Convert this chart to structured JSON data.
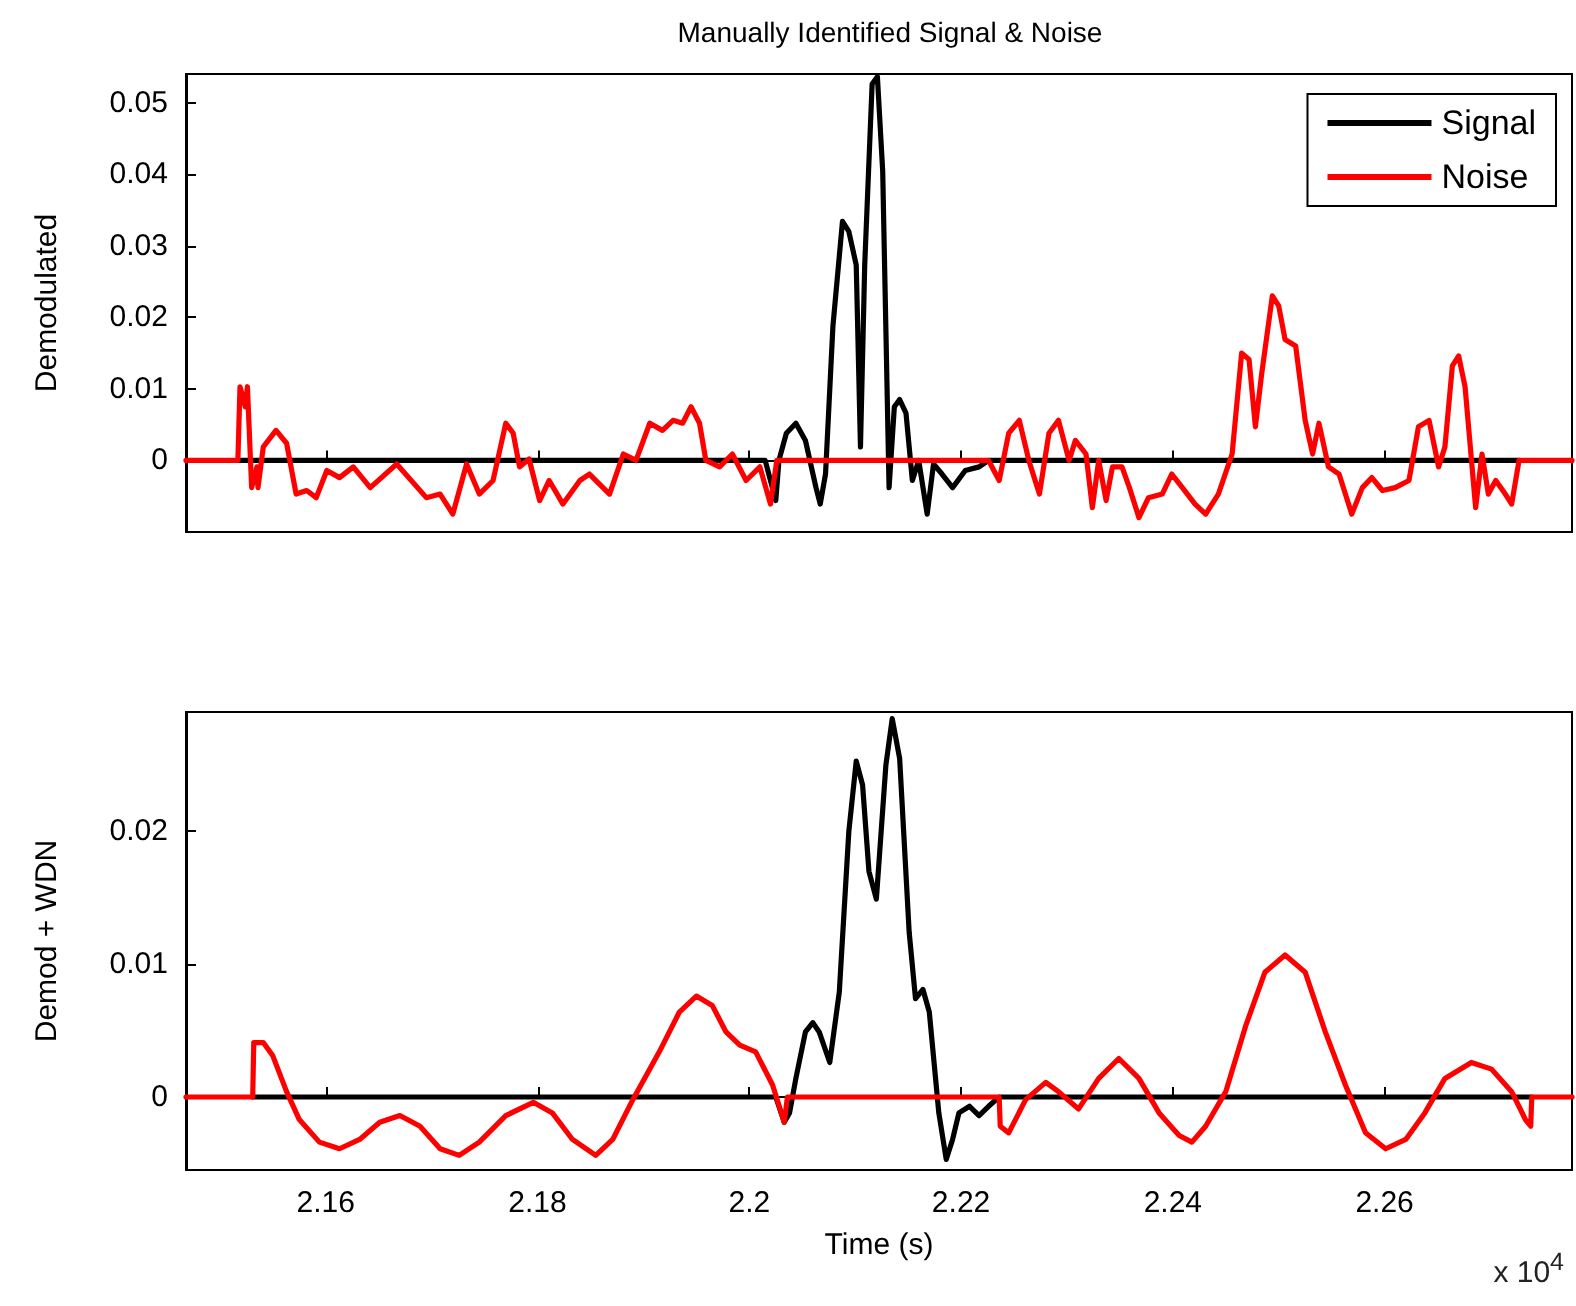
{
  "chart_data": [
    {
      "type": "line",
      "title": "Manually Identified Signal & Noise",
      "ylabel": "Demodulated",
      "legend": "top right",
      "marker": "none",
      "line_style": "solid",
      "tick_labels": "y",
      "xlim": [
        2.1468,
        2.2777
      ],
      "ylim": [
        -0.01,
        0.054
      ],
      "xticks": [
        2.16,
        2.18,
        2.2,
        2.22,
        2.24,
        2.26
      ],
      "yticks": [
        0,
        0.01,
        0.02,
        0.03,
        0.04,
        0.05
      ],
      "series": [
        {
          "name": "Signal",
          "color": "#000000",
          "x": [
            2.1519,
            2.2015,
            2.2025,
            2.2028,
            2.2035,
            2.2044,
            2.2053,
            2.2063,
            2.2067,
            2.2072,
            2.2079,
            2.2088,
            2.2094,
            2.2101,
            2.2105,
            2.2109,
            2.2116,
            2.2121,
            2.2126,
            2.2132,
            2.2137,
            2.2142,
            2.2148,
            2.2154,
            2.216,
            2.2168,
            2.2174,
            2.2182,
            2.2192,
            2.2204,
            2.2217,
            2.2226,
            2.2727
          ],
          "values": [
            0,
            0,
            -0.0056,
            0,
            0.0038,
            0.0052,
            0.0028,
            -0.0038,
            -0.0061,
            -0.0019,
            0.0188,
            0.0334,
            0.032,
            0.0273,
            0.0019,
            0.0273,
            0.0526,
            0.0536,
            0.0404,
            -0.0038,
            0.0075,
            0.0085,
            0.0066,
            -0.0028,
            0,
            -0.0075,
            -0.0005,
            -0.0019,
            -0.0038,
            -0.0014,
            -0.0009,
            0,
            0
          ]
        },
        {
          "name": "Noise",
          "color": "#ff0000",
          "x": [
            2.1468,
            2.1517,
            2.1519,
            2.1524,
            2.1526,
            2.153,
            2.1535,
            2.1536,
            2.1541,
            2.1553,
            2.1563,
            2.1572,
            2.1582,
            2.1591,
            2.1601,
            2.1613,
            2.1626,
            2.1642,
            2.1667,
            2.1695,
            2.1708,
            2.172,
            2.1733,
            2.1745,
            2.1758,
            2.177,
            2.1777,
            2.1783,
            2.1792,
            2.1802,
            2.1811,
            2.1824,
            2.184,
            2.1849,
            2.1868,
            2.1881,
            2.1893,
            2.1906,
            2.1918,
            2.1928,
            2.1937,
            2.1945,
            2.1953,
            2.1959,
            2.1972,
            2.1984,
            2.1997,
            2.201,
            2.202,
            2.2026,
            2.2226,
            2.2236,
            2.2245,
            2.2255,
            2.2264,
            2.2274,
            2.2283,
            2.2292,
            2.2302,
            2.2308,
            2.2318,
            2.2324,
            2.233,
            2.2337,
            2.2343,
            2.2352,
            2.2359,
            2.2368,
            2.2377,
            2.239,
            2.2399,
            2.2409,
            2.2421,
            2.2431,
            2.2443,
            2.2456,
            2.2465,
            2.2472,
            2.2478,
            2.2484,
            2.2494,
            2.25,
            2.2506,
            2.2516,
            2.2525,
            2.2532,
            2.2538,
            2.2547,
            2.2557,
            2.2569,
            2.2579,
            2.2588,
            2.2598,
            2.261,
            2.2623,
            2.2632,
            2.2642,
            2.2651,
            2.2657,
            2.2664,
            2.267,
            2.2676,
            2.2686,
            2.2692,
            2.2698,
            2.2705,
            2.2714,
            2.272,
            2.2727,
            2.2777
          ],
          "values": [
            0,
            0,
            0.0103,
            0.0075,
            0.0103,
            -0.0038,
            -0.0009,
            -0.0038,
            0.0019,
            0.0042,
            0.0024,
            -0.0047,
            -0.0042,
            -0.0052,
            -0.0014,
            -0.0024,
            -0.0009,
            -0.0038,
            -0.0005,
            -0.0052,
            -0.0047,
            -0.0075,
            -0.0005,
            -0.0047,
            -0.0028,
            0.0052,
            0.0038,
            -0.0009,
            0.0002,
            -0.0056,
            -0.0028,
            -0.0061,
            -0.0028,
            -0.0019,
            -0.0047,
            0.0009,
            0,
            0.0052,
            0.0042,
            0.0056,
            0.0052,
            0.0075,
            0.0052,
            0,
            -0.0009,
            0.0009,
            -0.0028,
            -0.0009,
            -0.0061,
            0,
            0,
            -0.0028,
            0.0038,
            0.0056,
            0,
            -0.0047,
            0.0038,
            0.0056,
            0,
            0.0028,
            0.0009,
            -0.0066,
            0,
            -0.0056,
            -0.0009,
            -0.0009,
            -0.0038,
            -0.008,
            -0.0052,
            -0.0047,
            -0.0019,
            -0.0038,
            -0.0061,
            -0.0075,
            -0.0047,
            0.0009,
            0.015,
            0.0141,
            0.0047,
            0.0122,
            0.023,
            0.0216,
            0.0169,
            0.016,
            0.0056,
            0.0009,
            0.0052,
            -0.0009,
            -0.0019,
            -0.0075,
            -0.0038,
            -0.0024,
            -0.0042,
            -0.0038,
            -0.0028,
            0.0047,
            0.0056,
            -0.0009,
            0.0019,
            0.0132,
            0.0146,
            0.0103,
            -0.0066,
            0.0009,
            -0.0047,
            -0.0028,
            -0.0047,
            -0.0061,
            0,
            0
          ]
        }
      ]
    },
    {
      "type": "line",
      "xlabel": "Time (s)",
      "ylabel": "Demod + WDN",
      "marker": "none",
      "line_style": "solid",
      "annotations": [
        "x 10$^{4}$"
      ],
      "xlim": [
        2.1468,
        2.2777
      ],
      "ylim": [
        -0.0055,
        0.029
      ],
      "xticks": [
        2.16,
        2.18,
        2.2,
        2.22,
        2.24,
        2.26
      ],
      "yticks": [
        0,
        0.01,
        0.02
      ],
      "series": [
        {
          "color": "#000000",
          "x": [
            2.1531,
            2.2025,
            2.2033,
            2.2038,
            2.2044,
            2.2053,
            2.206,
            2.2066,
            2.2076,
            2.2085,
            2.2094,
            2.2101,
            2.2107,
            2.2113,
            2.212,
            2.2129,
            2.2135,
            2.2142,
            2.2151,
            2.2157,
            2.2164,
            2.217,
            2.2179,
            2.2186,
            2.2192,
            2.2198,
            2.2208,
            2.2217,
            2.2226,
            2.2236,
            2.2739
          ],
          "values": [
            0,
            0,
            -0.0019,
            -0.0012,
            0.0014,
            0.0049,
            0.0056,
            0.0049,
            0.0026,
            0.0079,
            0.02,
            0.0253,
            0.0235,
            0.017,
            0.0149,
            0.025,
            0.0285,
            0.0255,
            0.0124,
            0.0074,
            0.0081,
            0.0064,
            -0.0012,
            -0.0047,
            -0.0032,
            -0.0012,
            -0.0007,
            -0.0014,
            -0.0007,
            0,
            0
          ]
        },
        {
          "color": "#ff0000",
          "x": [
            2.1468,
            2.1531,
            2.1532,
            2.1541,
            2.155,
            2.1563,
            2.1575,
            2.1594,
            2.1613,
            2.1632,
            2.1651,
            2.167,
            2.1689,
            2.1708,
            2.1726,
            2.1745,
            2.177,
            2.1796,
            2.1814,
            2.1833,
            2.1855,
            2.1871,
            2.189,
            2.1915,
            2.1934,
            2.195,
            2.1965,
            2.1978,
            2.1991,
            2.2006,
            2.2022,
            2.2033,
            2.2036,
            2.2236,
            2.2237,
            2.2245,
            2.2261,
            2.228,
            2.2292,
            2.2311,
            2.233,
            2.2349,
            2.2368,
            2.2387,
            2.2406,
            2.2418,
            2.2431,
            2.245,
            2.2469,
            2.2487,
            2.2506,
            2.2525,
            2.2544,
            2.2563,
            2.2582,
            2.2601,
            2.262,
            2.2638,
            2.2657,
            2.2682,
            2.2701,
            2.272,
            2.2733,
            2.2738,
            2.2739,
            2.2777
          ],
          "values": [
            0,
            0,
            0.0041,
            0.0041,
            0.0031,
            0.0004,
            -0.0017,
            -0.0034,
            -0.0039,
            -0.0032,
            -0.0019,
            -0.0014,
            -0.0022,
            -0.0039,
            -0.0044,
            -0.0034,
            -0.0014,
            -0.0004,
            -0.0012,
            -0.0032,
            -0.0044,
            -0.0032,
            -0.0002,
            0.0034,
            0.0064,
            0.0076,
            0.0069,
            0.0049,
            0.0039,
            0.0034,
            0.0009,
            -0.0019,
            0,
            0,
            -0.0022,
            -0.0027,
            -0.0002,
            0.0011,
            0.0004,
            -0.0009,
            0.0014,
            0.0029,
            0.0014,
            -0.0012,
            -0.0029,
            -0.0034,
            -0.0022,
            0.0004,
            0.0054,
            0.0094,
            0.0107,
            0.0094,
            0.0049,
            0.0009,
            -0.0027,
            -0.0039,
            -0.0032,
            -0.0012,
            0.0014,
            0.0026,
            0.0021,
            0.0004,
            -0.0017,
            -0.0022,
            0,
            0
          ]
        }
      ]
    }
  ]
}
